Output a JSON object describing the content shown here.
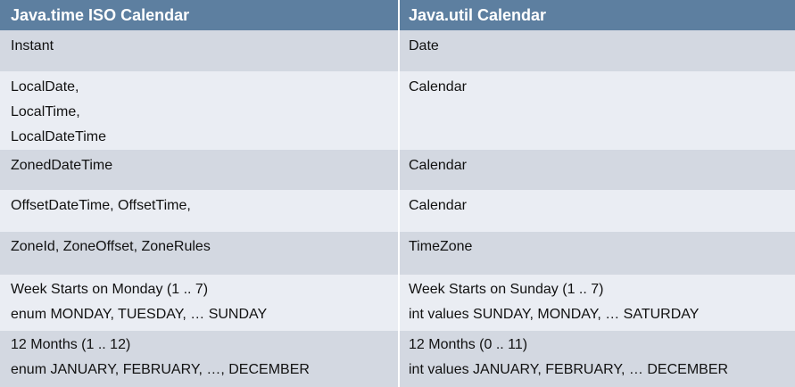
{
  "header": {
    "left": "Java.time ISO Calendar",
    "right": "Java.util Calendar"
  },
  "rows": [
    {
      "left": [
        "Instant"
      ],
      "right": [
        "Date"
      ]
    },
    {
      "left": [
        "LocalDate,",
        "LocalTime,",
        "LocalDateTime"
      ],
      "right": [
        "Calendar"
      ]
    },
    {
      "left": [
        "ZonedDateTime"
      ],
      "right": [
        "Calendar"
      ]
    },
    {
      "left": [
        "OffsetDateTime, OffsetTime,"
      ],
      "right": [
        "Calendar"
      ]
    },
    {
      "left": [
        "ZoneId, ZoneOffset, ZoneRules"
      ],
      "right": [
        "TimeZone"
      ]
    },
    {
      "left": [
        "Week Starts on Monday (1 .. 7)",
        "enum MONDAY, TUESDAY, … SUNDAY"
      ],
      "right": [
        "Week Starts on Sunday  (1 .. 7)",
        "int values SUNDAY, MONDAY, … SATURDAY"
      ]
    },
    {
      "left": [
        "12 Months  (1 .. 12)",
        "enum JANUARY, FEBRUARY, …, DECEMBER"
      ],
      "right": [
        "12 Months (0 .. 11)",
        "int values JANUARY, FEBRUARY, … DECEMBER"
      ]
    }
  ]
}
